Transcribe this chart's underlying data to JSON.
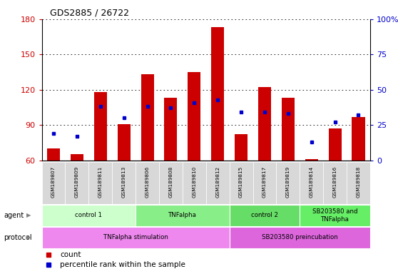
{
  "title": "GDS2885 / 26722",
  "samples": [
    "GSM189807",
    "GSM189809",
    "GSM189811",
    "GSM189813",
    "GSM189806",
    "GSM189808",
    "GSM189810",
    "GSM189812",
    "GSM189815",
    "GSM189817",
    "GSM189819",
    "GSM189814",
    "GSM189816",
    "GSM189818"
  ],
  "count_values": [
    70,
    65,
    118,
    91,
    133,
    113,
    135,
    173,
    82,
    122,
    113,
    61,
    87,
    97
  ],
  "percentile_values": [
    19,
    17,
    38,
    30,
    38,
    37,
    41,
    43,
    34,
    34,
    33,
    13,
    27,
    32
  ],
  "bar_color": "#cc0000",
  "pct_color": "#0000cc",
  "ylim_left": [
    60,
    180
  ],
  "ylim_right": [
    0,
    100
  ],
  "left_yticks": [
    60,
    90,
    120,
    150,
    180
  ],
  "right_yticks": [
    0,
    25,
    50,
    75,
    100
  ],
  "right_yticklabels": [
    "0",
    "25",
    "50",
    "75",
    "100%"
  ],
  "agent_groups": [
    {
      "label": "control 1",
      "start": 0,
      "end": 4,
      "color": "#ccffcc"
    },
    {
      "label": "TNFalpha",
      "start": 4,
      "end": 8,
      "color": "#88ee88"
    },
    {
      "label": "control 2",
      "start": 8,
      "end": 11,
      "color": "#66dd66"
    },
    {
      "label": "SB203580 and\nTNFalpha",
      "start": 11,
      "end": 14,
      "color": "#66ee66"
    }
  ],
  "protocol_groups": [
    {
      "label": "TNFalpha stimulation",
      "start": 0,
      "end": 8,
      "color": "#ee88ee"
    },
    {
      "label": "SB203580 preincubation",
      "start": 8,
      "end": 14,
      "color": "#dd66dd"
    }
  ],
  "legend_items": [
    {
      "label": "count",
      "color": "#cc0000"
    },
    {
      "label": "percentile rank within the sample",
      "color": "#0000cc"
    }
  ],
  "left_axis_color": "#cc0000",
  "right_axis_color": "#0000cc",
  "grid_color": "#000000",
  "bar_width": 0.55
}
